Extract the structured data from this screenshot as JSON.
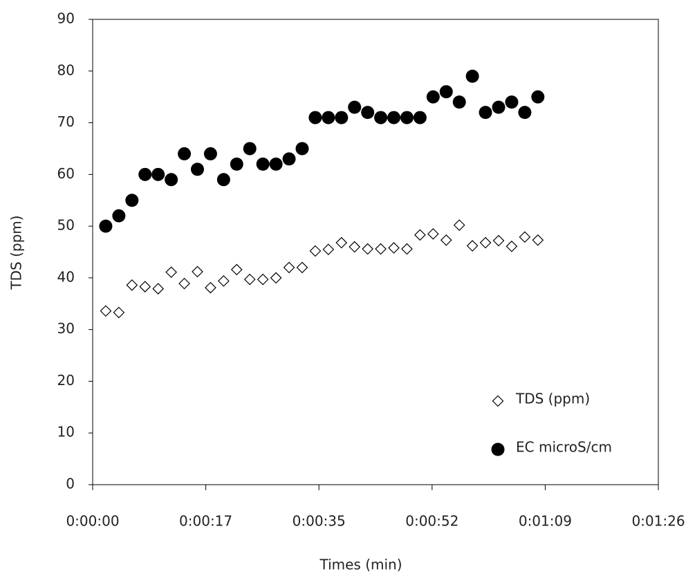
{
  "chart_data": {
    "type": "scatter",
    "xlabel": "Times (min)",
    "ylabel": "TDS (ppm)",
    "xlim": [
      0,
      86.4
    ],
    "ylim": [
      0,
      90
    ],
    "xticks": [
      {
        "value": 0,
        "label": "0:00:00"
      },
      {
        "value": 17.28,
        "label": "0:00:17"
      },
      {
        "value": 34.56,
        "label": "0:00:35"
      },
      {
        "value": 51.84,
        "label": "0:00:52"
      },
      {
        "value": 69.12,
        "label": "0:01:09"
      },
      {
        "value": 86.4,
        "label": "0:01:26"
      }
    ],
    "yticks": [
      0,
      10,
      20,
      30,
      40,
      50,
      60,
      70,
      80,
      90
    ],
    "grid": false,
    "legend": "lower right",
    "x": [
      2,
      4,
      6,
      8,
      10,
      12,
      14,
      16,
      18,
      20,
      22,
      24,
      26,
      28,
      30,
      32,
      34,
      36,
      38,
      40,
      42,
      44,
      46,
      48,
      50,
      52,
      54,
      56,
      58,
      60,
      62,
      64,
      66,
      68
    ],
    "series": [
      {
        "name": "TDS (ppm)",
        "color": "#000000",
        "marker": "diamond-open",
        "values": [
          33.6,
          33.3,
          38.6,
          38.3,
          37.9,
          41.1,
          38.9,
          41.2,
          38.1,
          39.4,
          41.6,
          39.7,
          39.7,
          40.0,
          42.0,
          42.0,
          45.2,
          45.5,
          46.8,
          46.0,
          45.6,
          45.6,
          45.8,
          45.6,
          48.3,
          48.5,
          47.3,
          50.2,
          46.2,
          46.8,
          47.2,
          46.1,
          47.9,
          47.3
        ]
      },
      {
        "name": "EC microS/cm",
        "color": "#000000",
        "marker": "circle-filled",
        "values": [
          50,
          52,
          55,
          60,
          60,
          59,
          64,
          61,
          64,
          59,
          62,
          65,
          62,
          62,
          63,
          65,
          71,
          71,
          71,
          73,
          72,
          71,
          71,
          71,
          71,
          75,
          76,
          74,
          79,
          72,
          73,
          74,
          72,
          75
        ]
      }
    ]
  }
}
